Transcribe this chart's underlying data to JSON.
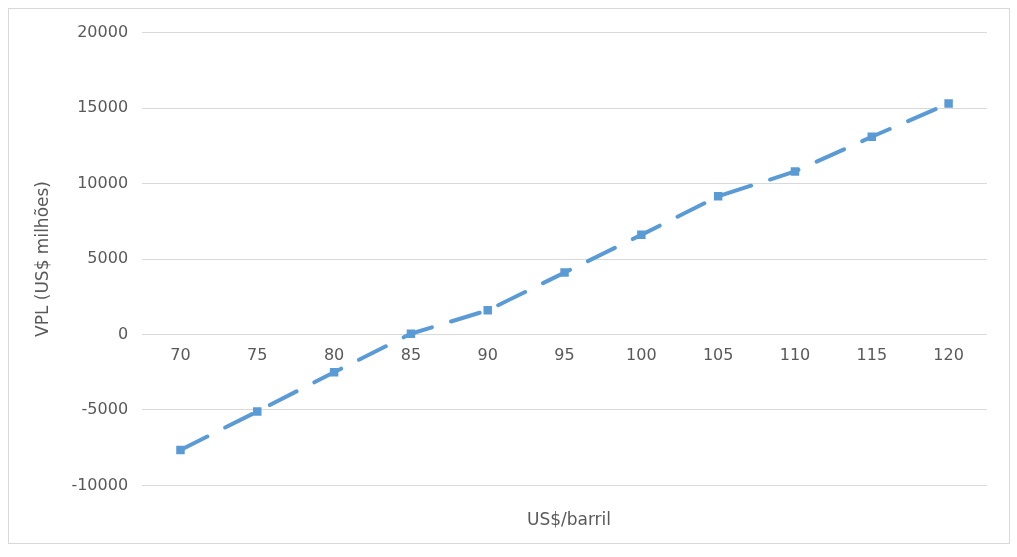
{
  "chart_data": {
    "type": "line",
    "xlabel": "US$/barril",
    "ylabel": "VPL (US$ milhões)",
    "categories": [
      "70",
      "75",
      "80",
      "85",
      "90",
      "95",
      "100",
      "105",
      "110",
      "115",
      "120"
    ],
    "series": [
      {
        "color": "#5b9bd5",
        "values": [
          -7650,
          -5100,
          -2500,
          50,
          1600,
          4100,
          6600,
          9150,
          10800,
          13100,
          15300
        ]
      }
    ],
    "ylim": [
      -10000,
      20000
    ],
    "yticks": [
      -10000,
      -5000,
      0,
      5000,
      10000,
      15000,
      20000
    ],
    "grid": "y",
    "legend": false,
    "marker": "square",
    "line_style": "dashed"
  }
}
